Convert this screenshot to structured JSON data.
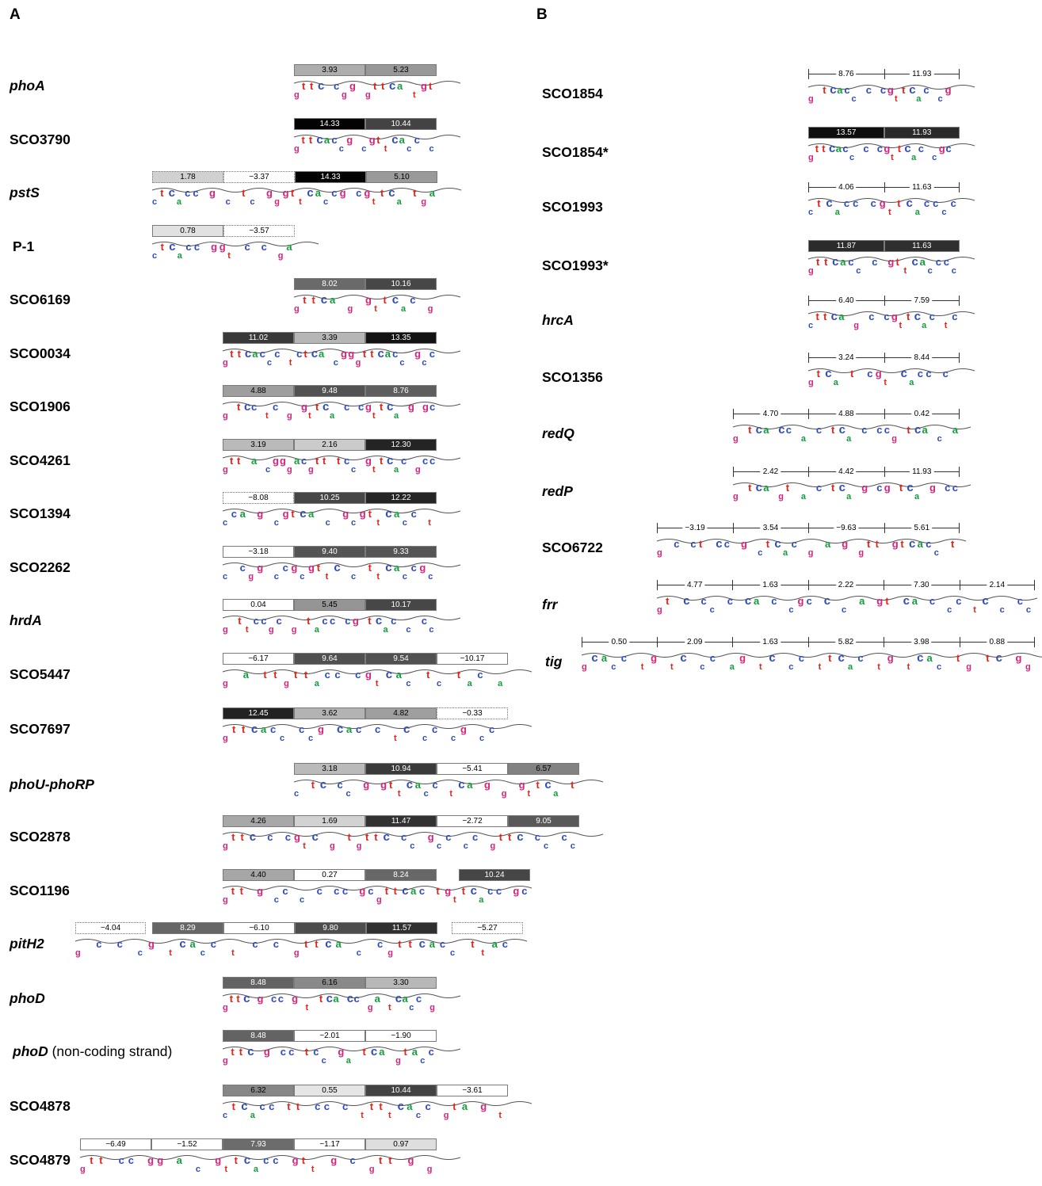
{
  "colors": {
    "g": "#d4247d",
    "t": "#e2231a",
    "c": "#2e4bb8",
    "a": "#139c3c"
  },
  "panelA": {
    "label": "A",
    "rows": [
      {
        "gene": "phoA",
        "italic": true,
        "boxes": [
          {
            "v": "3.93"
          },
          {
            "v": "5.23"
          }
        ],
        "logo": "gttC_c gg_gttCa_t gt"
      },
      {
        "gene": "SCO3790",
        "boxes": [
          {
            "v": "14.33"
          },
          {
            "v": "10.44"
          }
        ],
        "logo": "gttCaccg_cgttCacc_c"
      },
      {
        "gene": "pstS",
        "italic": true,
        "boxes": [
          {
            "v": "1.78",
            "dashed": true
          },
          {
            "v": "−3.37",
            "dashed": true
          },
          {
            "v": "14.33"
          },
          {
            "v": "5.10"
          }
        ],
        "logo": "ctCacc_g_c_tc_gg gttCaccg_cgttCa_t ga"
      },
      {
        "gene": "P-1",
        "boxes": [
          {
            "v": "0.78"
          },
          {
            "v": "−3.57",
            "dashed": true
          }
        ],
        "logo": "c tCacc_g gt_c_c_ga"
      },
      {
        "gene": "SCO6169",
        "boxes": [
          {
            "v": "8.02"
          },
          {
            "v": "10.16"
          }
        ],
        "logo": "gttCa_g_gttCac_g"
      },
      {
        "gene": "SCO0034",
        "boxes": [
          {
            "v": "11.02"
          },
          {
            "v": "3.39"
          },
          {
            "v": "13.35"
          }
        ],
        "logo": "gttCaccc_t ctCa_cgggttCacc_gcc"
      },
      {
        "gene": "SCO1906",
        "boxes": [
          {
            "v": "4.88"
          },
          {
            "v": "9.48"
          },
          {
            "v": "8.76"
          }
        ],
        "logo": "g_tCc_t c_g_gttCa_c_c gttCa_b_gc"
      },
      {
        "gene": "SCO4261",
        "boxes": [
          {
            "v": "3.19"
          },
          {
            "v": "2.16"
          },
          {
            "v": "12.30"
          }
        ],
        "logo": "gtt_a_c bbgecgtt_t cc_gttCac_gcc"
      },
      {
        "gene": "SCO1394",
        "boxes": [
          {
            "v": "−8.08",
            "dashed": true
          },
          {
            "v": "10.25"
          },
          {
            "v": "12.22"
          }
        ],
        "logo": "c ca_b_cgtCa_c_gcgttCacc_t"
      },
      {
        "gene": "SCO2262",
        "boxes": [
          {
            "v": "−3.18"
          },
          {
            "v": "9.40"
          },
          {
            "v": "9.33"
          }
        ],
        "logo": "c_cbg_ccgcgttC_c_ttCaccgc"
      },
      {
        "gene": "hrdA",
        "italic": true,
        "boxes": [
          {
            "v": "0.04"
          },
          {
            "v": "5.45"
          },
          {
            "v": "10.17"
          }
        ],
        "logo": "g_tt ccgc_g_t acc_cg_tCac_c_cc"
      },
      {
        "gene": "SCO5447",
        "boxes": [
          {
            "v": "−6.17"
          },
          {
            "v": "9.64"
          },
          {
            "v": "9.54"
          },
          {
            "v": "−10.17"
          }
        ],
        "logo": "g_ a_ tt gtt acc_cg tCac_t c_ tac_e"
      },
      {
        "gene": "SCO7697",
        "boxes": [
          {
            "v": "12.45"
          },
          {
            "v": "3.62"
          },
          {
            "v": "4.82"
          },
          {
            "v": "−0.33",
            "dashed": true
          }
        ],
        "logo": "gttCacc_c cg_Cac_c_tC_cc_cg_ cc_"
      },
      {
        "gene": "phoU-phoRP",
        "italic": true,
        "boxes": [
          {
            "v": "3.18"
          },
          {
            "v": "10.94"
          },
          {
            "v": "−5.41"
          },
          {
            "v": "6.57"
          }
        ],
        "logo": "c_tC_cc_g_gttCacc_t Ca_b_g_gttCa_t"
      },
      {
        "gene": "SCO2878",
        "boxes": [
          {
            "v": "4.26"
          },
          {
            "v": "1.69"
          },
          {
            "v": "11.47"
          },
          {
            "v": "−2.72"
          },
          {
            "v": "9.05"
          }
        ],
        "logo": "gttC_c_cgtC_b_t gttC_cc_gc c_cc_gttC_cc_cc"
      },
      {
        "gene": "SCO1196",
        "boxes": [
          {
            "v": "4.40"
          },
          {
            "v": "0.27"
          },
          {
            "v": "8.24"
          },
          {
            "v": "10.24",
            "gap": true
          }
        ],
        "logo": "gtt_b_cc_c_c_cc_gcgttCac_t  gttCacc_g c"
      },
      {
        "gene": "pitH2",
        "italic": true,
        "boxes": [
          {
            "v": "−4.04",
            "dashed": true,
            "pre": true
          },
          {
            "v": "8.29"
          },
          {
            "v": "−6.10"
          },
          {
            "v": "9.80"
          },
          {
            "v": "11.57"
          },
          {
            "v": "−5.27",
            "dashed": true,
            "gap": true
          }
        ],
        "logo": "g_c_c_c g_tCacc_t_c_c_gttCa_c_cgttCacc_t  t ac_"
      },
      {
        "gene": "phoD",
        "italic": true,
        "boxes": [
          {
            "v": "8.48"
          },
          {
            "v": "6.16"
          },
          {
            "v": "3.30"
          }
        ],
        "logo": "gttC_b_cc_g_t_tCa_Cc_ga_tCacc_g"
      },
      {
        "gene": "phoD",
        "italic": true,
        "note": " (non-coding strand)",
        "boxes": [
          {
            "v": "8.48"
          },
          {
            "v": "−2.01"
          },
          {
            "v": "−1.90"
          }
        ],
        "logo": "gttC_b_cc_t c c_ga_tCa_bta cc"
      },
      {
        "gene": "SCO4878",
        "boxes": [
          {
            "v": "6.32"
          },
          {
            "v": "0.55"
          },
          {
            "v": "10.44"
          },
          {
            "v": "−3.61"
          }
        ],
        "logo": "c tCacc_tt_cc_c_tt ttCacc_gt a_b_t"
      },
      {
        "gene": "SCO4879",
        "boxes": [
          {
            "v": "−6.49"
          },
          {
            "v": "−1.52"
          },
          {
            "v": "7.93"
          },
          {
            "v": "−1.17"
          },
          {
            "v": "0.97"
          }
        ],
        "logo": "g tt_cc_b g_a_c_gttCacc_gtt_b_c_gtt_b_b"
      }
    ]
  },
  "panelB": {
    "label": "B",
    "rows": [
      {
        "gene": "SCO1854",
        "type": "ruler",
        "vals": [
          "8.76",
          "11.93"
        ],
        "logo": "g_tCacc_c_cgttCac_cg_"
      },
      {
        "gene": "SCO1854*",
        "type": "box",
        "vals": [
          "13.57",
          "11.93"
        ],
        "logo": "gttCacc_c_cgttCac_cgc_"
      },
      {
        "gene": "SCO1993",
        "type": "ruler",
        "vals": [
          "4.06",
          "11.63"
        ],
        "logo": "c tCacc_c gttCaccc c"
      },
      {
        "gene": "SCO1993*",
        "type": "box",
        "vals": [
          "11.87",
          "11.63"
        ],
        "logo": "gttCacc_c_gttCacccc"
      },
      {
        "gene": "hrcA",
        "italic": true,
        "type": "ruler",
        "vals": [
          "6.40",
          "7.59"
        ],
        "logo": "cttCa_b_c_cgttCac_t c"
      },
      {
        "gene": "SCO1356",
        "type": "ruler",
        "vals": [
          "3.24",
          "8.44"
        ],
        "logo": "gtCa_t_cgt_Cacc_c_"
      },
      {
        "gene": "redQ",
        "italic": true,
        "type": "ruler",
        "vals": [
          "4.70",
          "4.88",
          "0.42"
        ],
        "logo": "g_tCa_Cc_e_c_tCa_c_ccg_tCa_c_e"
      },
      {
        "gene": "redP",
        "italic": true,
        "type": "ruler",
        "vals": [
          "2.42",
          "4.42",
          "11.93"
        ],
        "logo": "g_tCa_bt_e_c_tCa_b_cg_tCa_b_cc"
      },
      {
        "gene": "SCO6722",
        "type": "ruler",
        "vals": [
          "−3.19",
          "3.54",
          "−9.63",
          "5.61"
        ],
        "logo": "g_c_ct_Cc_g_c tCac_g_a_b_gtt_gt Cacc_t"
      },
      {
        "gene": "frr",
        "italic": true,
        "type": "ruler",
        "vals": [
          "4.77",
          "1.63",
          "2.22",
          "7.30",
          "2.14"
        ],
        "logo": "gt_C_cc_c_Ca_c_cgc_C_c_e_gt_Ca_c_cc_tC_c_cc"
      },
      {
        "gene": "tig",
        "italic": true,
        "type": "ruler",
        "vals": [
          "0.50",
          "2.09",
          "1.63",
          "5.82",
          "3.98",
          "0.88"
        ],
        "logo": "g Cacc_t g_tC_cc_e g_tC_cc_t tCac_t g_tCac_t g_tC_bb"
      }
    ]
  }
}
